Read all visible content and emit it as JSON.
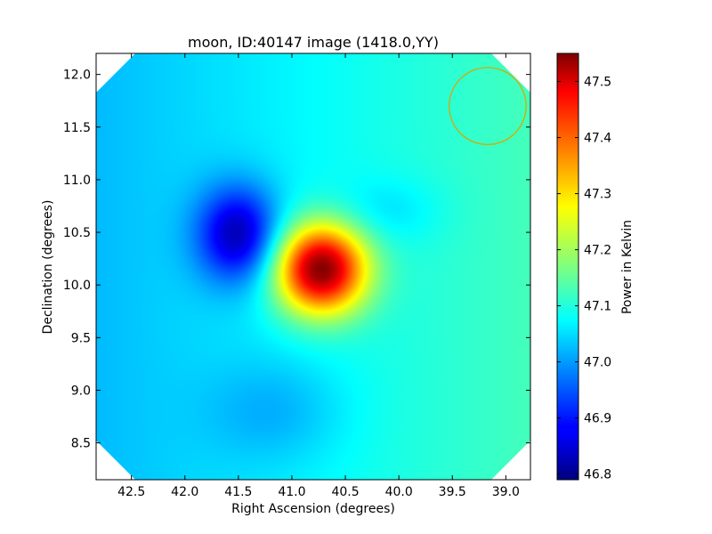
{
  "chart_data": {
    "type": "heatmap",
    "title": "moon, ID:40147 image (1418.0,YY)",
    "xlabel": "Right Ascension (degrees)",
    "ylabel": "Declination (degrees)",
    "colorbar_label": "Power in Kelvin",
    "xlim": [
      42.83,
      38.77
    ],
    "ylim": [
      8.15,
      12.2
    ],
    "xticks": [
      42.5,
      42.0,
      41.5,
      41.0,
      40.5,
      40.0,
      39.5,
      39.0
    ],
    "xtick_labels": [
      "42.5",
      "42.0",
      "41.5",
      "41.0",
      "40.5",
      "40.0",
      "39.5",
      "39.0"
    ],
    "yticks": [
      8.5,
      9.0,
      9.5,
      10.0,
      10.5,
      11.0,
      11.5,
      12.0
    ],
    "ytick_labels": [
      "8.5",
      "9.0",
      "9.5",
      "10.0",
      "10.5",
      "11.0",
      "11.5",
      "12.0"
    ],
    "clim": [
      46.79,
      47.55
    ],
    "cticks": [
      46.8,
      46.9,
      47.0,
      47.1,
      47.2,
      47.3,
      47.4,
      47.5
    ],
    "ctick_labels": [
      "46.8",
      "46.9",
      "47.0",
      "47.1",
      "47.2",
      "47.3",
      "47.4",
      "47.5"
    ],
    "colormap": "jet",
    "background_level": 47.08,
    "features": [
      {
        "kind": "minimum",
        "ra": 41.5,
        "dec": 10.48,
        "value": 46.85
      },
      {
        "kind": "maximum",
        "ra": 40.73,
        "dec": 10.15,
        "value": 47.55
      },
      {
        "kind": "minimum",
        "ra": 40.1,
        "dec": 10.7,
        "value": 47.04
      },
      {
        "kind": "minimum",
        "ra": 41.15,
        "dec": 8.8,
        "value": 47.03
      }
    ],
    "beam_circle": {
      "ra": 39.17,
      "dec": 11.7,
      "radius_deg": 0.36,
      "color": "#d4aa00"
    }
  }
}
